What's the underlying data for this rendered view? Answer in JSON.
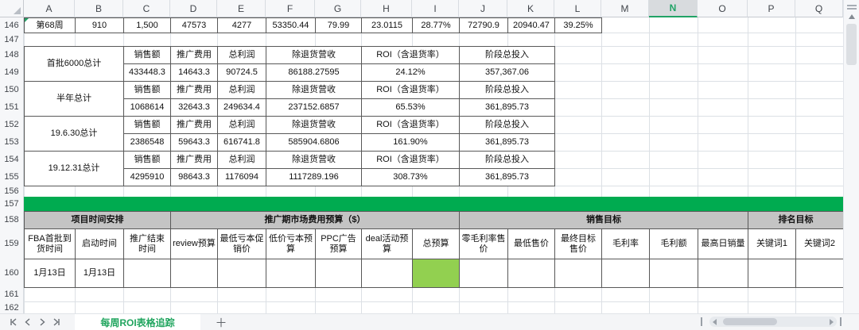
{
  "grid": {
    "columns": [
      "A",
      "B",
      "C",
      "D",
      "E",
      "F",
      "G",
      "H",
      "I",
      "J",
      "K",
      "L",
      "M",
      "N",
      "O",
      "P",
      "Q"
    ],
    "selected_column": "N",
    "rows": [
      "146",
      "147",
      "148",
      "149",
      "150",
      "151",
      "152",
      "153",
      "154",
      "155",
      "156",
      "157",
      "158",
      "159",
      "160",
      "161",
      "162"
    ]
  },
  "week_row": {
    "cells": [
      "第68周",
      "910",
      "1,500",
      "47573",
      "4277",
      "53350.44",
      "79.99",
      "23.0115",
      "28.77%",
      "72790.9",
      "20940.47",
      "39.25%"
    ]
  },
  "summary_table": {
    "header_labels": [
      "销售额",
      "推广费用",
      "总利润",
      "除退货营收",
      "ROI（含退货率）",
      "阶段总投入"
    ],
    "groups": [
      {
        "label": "首批6000总计",
        "values": [
          "433448.3",
          "14643.3",
          "90724.5",
          "86188.27595",
          "24.12%",
          "357,367.06"
        ]
      },
      {
        "label": "半年总计",
        "values": [
          "1068614",
          "32643.3",
          "249634.4",
          "237152.6857",
          "65.53%",
          "361,895.73"
        ]
      },
      {
        "label": "19.6.30总计",
        "values": [
          "2386548",
          "59643.3",
          "616741.8",
          "585904.6806",
          "161.90%",
          "361,895.73"
        ]
      },
      {
        "label": "19.12.31总计",
        "values": [
          "4295910",
          "98643.3",
          "1176094",
          "1117289.196",
          "308.73%",
          "361,895.73"
        ]
      }
    ]
  },
  "plan_table": {
    "sections": [
      {
        "label": "项目时间安排"
      },
      {
        "label": "推广期市场费用预算（$）"
      },
      {
        "label": "销售目标"
      },
      {
        "label": "排名目标"
      }
    ],
    "columns": [
      "FBA首批到货时间",
      "启动时间",
      "推广结束时间",
      "review预算",
      "最低亏本促销价",
      "低价亏本预算",
      "PPC广告预算",
      "deal活动预算",
      "总预算",
      "零毛利率售价",
      "最低售价",
      "最终目标售价",
      "毛利率",
      "毛利额",
      "最高日销量",
      "关键词1",
      "关键词2"
    ],
    "values": [
      "1月13日",
      "1月13日",
      "",
      "",
      "",
      "",
      "",
      "",
      "",
      "",
      "",
      "",
      "",
      "",
      "",
      "",
      ""
    ]
  },
  "colors": {
    "band_green": "#00AB50",
    "cell_green": "#92D050",
    "accent_green": "#21A366",
    "section_gray": "#C4C4C4"
  },
  "sheet_bar": {
    "tab_name": "每周ROI表格追踪",
    "add_label": "＋"
  }
}
